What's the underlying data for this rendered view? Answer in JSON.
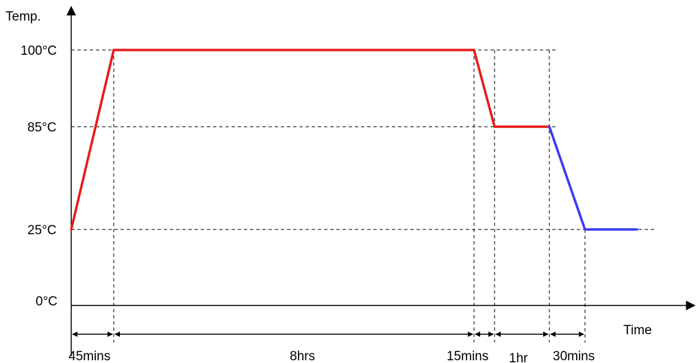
{
  "axes": {
    "y_label": "Temp.",
    "x_label": "Time",
    "y_ticks": [
      "100°C",
      "85°C",
      "25°C",
      "0°C"
    ]
  },
  "profile": {
    "segments": [
      {
        "from": 25,
        "to": 100,
        "color": "#e81a1a"
      },
      {
        "from": 100,
        "to": 100,
        "color": "#e81a1a"
      },
      {
        "from": 100,
        "to": 85,
        "color": "#e81a1a"
      },
      {
        "from": 85,
        "to": 85,
        "color": "#e81a1a"
      },
      {
        "from": 85,
        "to": 25,
        "color": "#3a3aee"
      },
      {
        "from": 25,
        "to": 25,
        "color": "#3a3aee"
      }
    ]
  },
  "durations": [
    {
      "label": "45mins"
    },
    {
      "label": "8hrs"
    },
    {
      "label": "15mins"
    },
    {
      "label": "1hr"
    },
    {
      "label": "30mins"
    }
  ],
  "colors": {
    "heating": "#e81a1a",
    "cooling": "#3a3aee",
    "axis": "#000000"
  }
}
